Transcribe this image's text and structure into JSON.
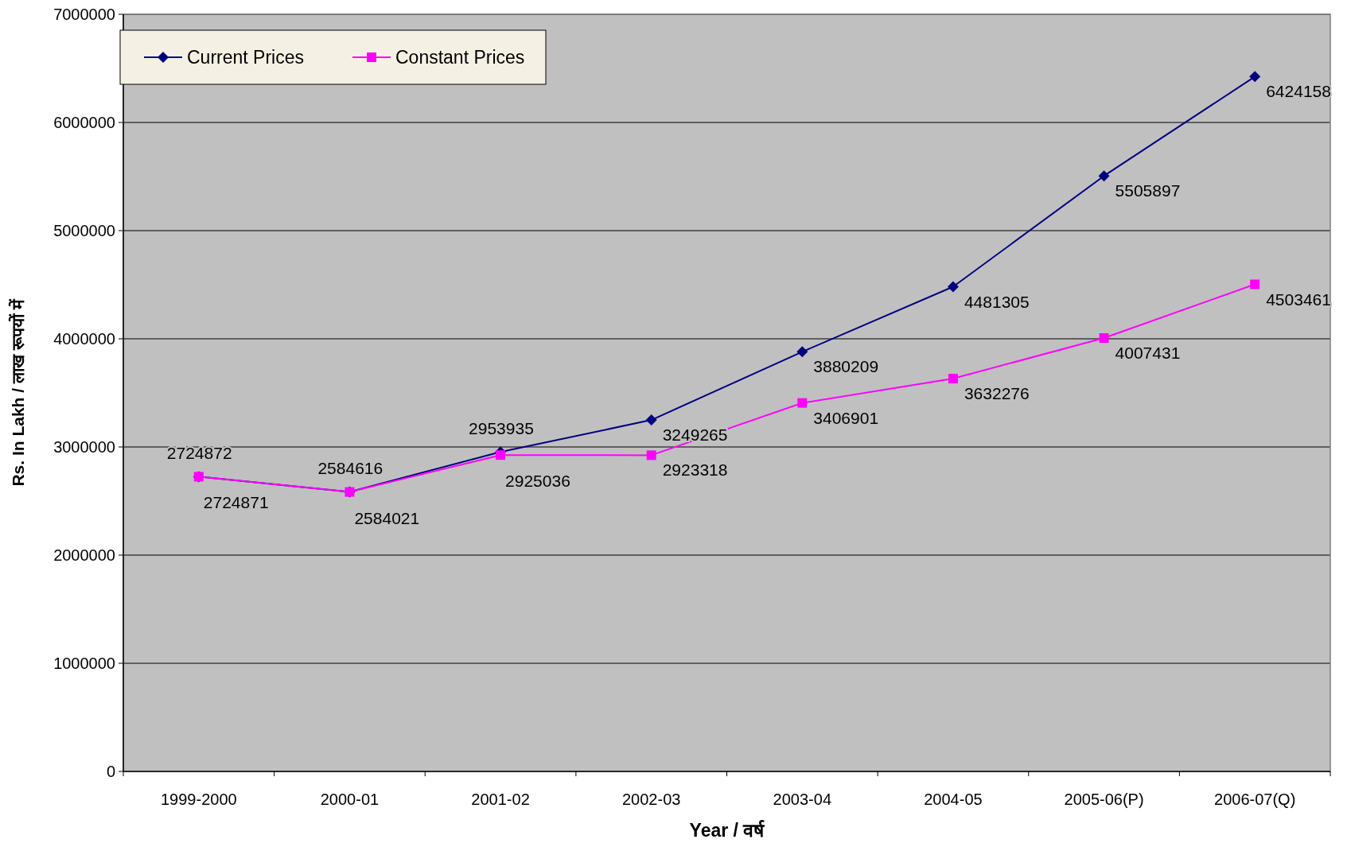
{
  "chart_data": {
    "type": "line",
    "xlabel": "Year / वर्ष",
    "ylabel": "Rs. In Lakh / लाख रूपयों में",
    "categories": [
      "1999-2000",
      "2000-01",
      "2001-02",
      "2002-03",
      "2003-04",
      "2004-05",
      "2005-06(P)",
      "2006-07(Q)"
    ],
    "series": [
      {
        "name": "Current Prices",
        "color": "#000080",
        "marker": "diamond",
        "values": [
          2724872,
          2584616,
          2953935,
          3249265,
          3880209,
          4481305,
          5505897,
          6424158
        ]
      },
      {
        "name": "Constant Prices",
        "color": "#ff00ff",
        "marker": "square",
        "values": [
          2724871,
          2584021,
          2925036,
          2923318,
          3406901,
          3632276,
          4007431,
          4503461
        ]
      }
    ],
    "ylim": [
      0,
      7000000
    ],
    "yticks": [
      0,
      1000000,
      2000000,
      3000000,
      4000000,
      5000000,
      6000000,
      7000000
    ],
    "grid": "y",
    "legend": "top left",
    "data_labels": true
  }
}
